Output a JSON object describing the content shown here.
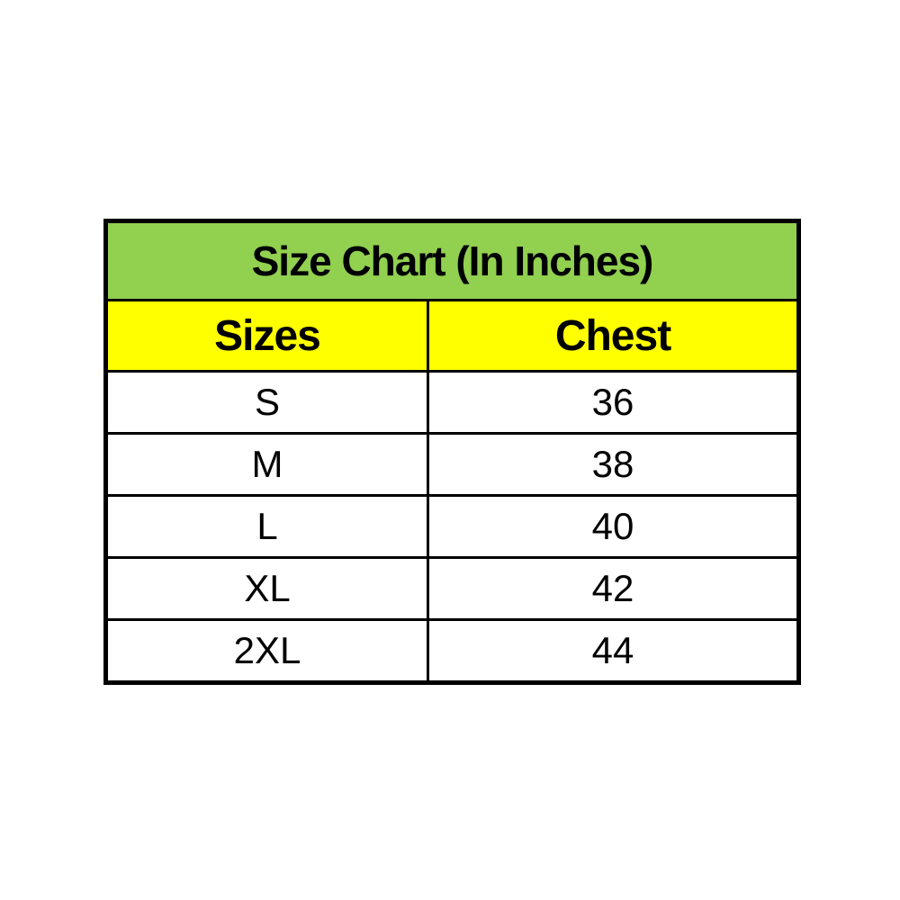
{
  "chart_data": {
    "type": "table",
    "title": "Size Chart (In Inches)",
    "columns": [
      "Sizes",
      "Chest"
    ],
    "rows": [
      [
        "S",
        36
      ],
      [
        "M",
        38
      ],
      [
        "L",
        40
      ],
      [
        "XL",
        42
      ],
      [
        "2XL",
        44
      ]
    ],
    "colors": {
      "title_background": "#92D050",
      "header_background": "#FFFF00",
      "row_background": "#FFFFFF",
      "border": "#000000",
      "text": "#000000"
    },
    "layout_hints": {
      "grid": "on",
      "page_background": "#FFFFFF"
    }
  }
}
